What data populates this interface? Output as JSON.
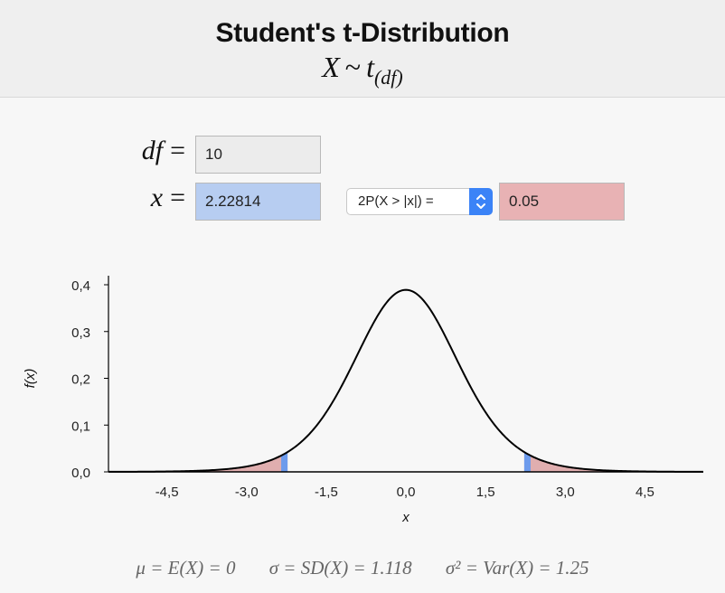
{
  "header": {
    "title": "Student's t-Distribution",
    "formula_var": "X",
    "formula_rel": "~",
    "formula_dist": "t",
    "formula_sub": "(df)"
  },
  "inputs": {
    "df": {
      "label": "df",
      "eq": "=",
      "value": "10"
    },
    "x": {
      "label": "x",
      "eq": "=",
      "value": "2.22814"
    },
    "prob_select": {
      "selected": "2P(X > |x|) ="
    },
    "prob": {
      "value": "0.05"
    }
  },
  "colors": {
    "header_bg": "#efefef",
    "x_field": "#b7cdf1",
    "prob_field": "#e8b2b4",
    "tail_fill": "#e0aeaf",
    "x_marker": "#6d9bec",
    "select_accent": "#3b83f7"
  },
  "icons": {
    "select_arrow": "updown-chevron-icon"
  },
  "chart_data": {
    "type": "line",
    "distribution": "student-t",
    "df": 10,
    "x_crit": 2.22814,
    "shaded": "two-tailed, |x| > 2.22814",
    "xlim": [
      -5.6,
      5.6
    ],
    "ylim": [
      0,
      0.4
    ],
    "xticks": [
      -4.5,
      -3.0,
      -1.5,
      0.0,
      1.5,
      3.0,
      4.5
    ],
    "xtick_labels": [
      "-4,5",
      "-3,0",
      "-1,5",
      "0,0",
      "1,5",
      "3,0",
      "4,5"
    ],
    "yticks": [
      0,
      0.1,
      0.2,
      0.3,
      0.4
    ],
    "ytick_labels": [
      "0,0",
      "0,1",
      "0,2",
      "0,3",
      "0,4"
    ],
    "xlabel": "x",
    "ylabel": "f(x)",
    "grid": false
  },
  "moments": {
    "mean": "μ = E(X) = 0",
    "sd": "σ = SD(X) = 1.118",
    "var": "σ² = Var(X) = 1.25"
  }
}
